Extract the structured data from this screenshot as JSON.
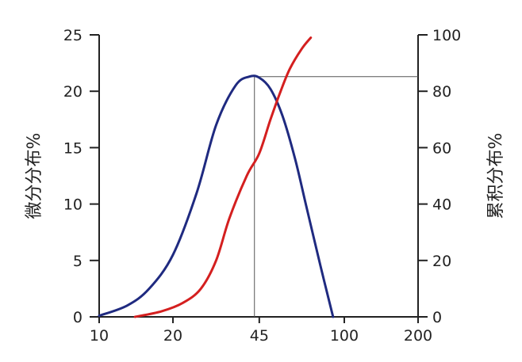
{
  "chart_data": {
    "type": "line",
    "xscale": "log",
    "xlim": [
      10,
      200
    ],
    "ylim_left": [
      0,
      25
    ],
    "ylim_right": [
      0,
      100
    ],
    "x_ticks": [
      {
        "value": 10,
        "label": "10"
      },
      {
        "value": 20,
        "label": "20"
      },
      {
        "value": 45,
        "label": "45"
      },
      {
        "value": 100,
        "label": "100"
      },
      {
        "value": 200,
        "label": "200"
      }
    ],
    "y_left_ticks": [
      "0",
      "5",
      "10",
      "15",
      "20",
      "25"
    ],
    "y_right_ticks": [
      "0",
      "20",
      "40",
      "60",
      "80",
      "100"
    ],
    "ylabel_left": "微分分布%",
    "ylabel_right": "累积分布%",
    "series": [
      {
        "axis": "left",
        "color": "#1f2a80",
        "points": [
          [
            10,
            0.1
          ],
          [
            13,
            1.0
          ],
          [
            16,
            2.5
          ],
          [
            20,
            5.5
          ],
          [
            25,
            11
          ],
          [
            30,
            17
          ],
          [
            36,
            20.5
          ],
          [
            41,
            21.3
          ],
          [
            45,
            21.2
          ],
          [
            50,
            20.2
          ],
          [
            56,
            17.8
          ],
          [
            63,
            14
          ],
          [
            70,
            9.8
          ],
          [
            80,
            4.5
          ],
          [
            90,
            0
          ]
        ]
      },
      {
        "axis": "right",
        "color": "#d41f1f",
        "points": [
          [
            14,
            0
          ],
          [
            18,
            2
          ],
          [
            22,
            5
          ],
          [
            26,
            10
          ],
          [
            30,
            20
          ],
          [
            34,
            35
          ],
          [
            40,
            50
          ],
          [
            45,
            58
          ],
          [
            50,
            70
          ],
          [
            55,
            80
          ],
          [
            60,
            88
          ],
          [
            67,
            95
          ],
          [
            73,
            99
          ]
        ]
      }
    ],
    "reference": {
      "x": 43,
      "y_left": 21.3
    }
  }
}
